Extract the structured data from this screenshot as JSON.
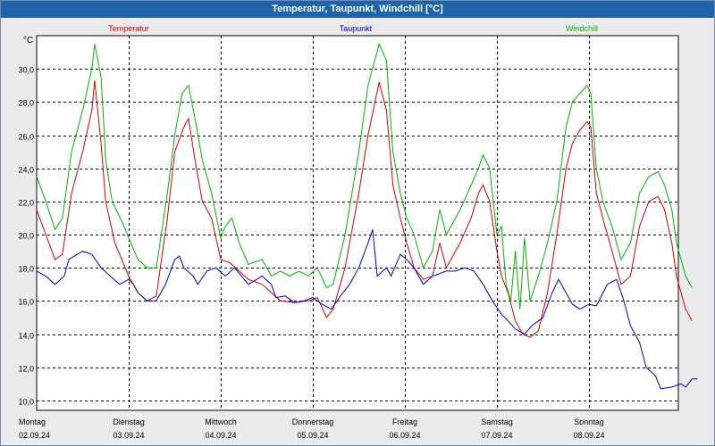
{
  "window": {
    "title": "Temperatur, Taupunkt, Windchill [°C]"
  },
  "chart_data": {
    "type": "line",
    "title": "Temperatur, Taupunkt, Windchill [°C]",
    "ylabel": "°C",
    "ylim": [
      9.4,
      32.0
    ],
    "yticks": [
      10.0,
      12.0,
      14.0,
      16.0,
      18.0,
      20.0,
      22.0,
      24.0,
      26.0,
      28.0,
      30.0
    ],
    "ytick_labels": [
      "10,0",
      "12,0",
      "14,0",
      "16,0",
      "18,0",
      "20,0",
      "22,0",
      "24,0",
      "26,0",
      "28,0",
      "30,0"
    ],
    "xlim": [
      0,
      7
    ],
    "day_labels": [
      {
        "weekday": "Montag",
        "date": "02.09.24"
      },
      {
        "weekday": "Dienstag",
        "date": "03.09.24"
      },
      {
        "weekday": "Mittwoch",
        "date": "04.09.24"
      },
      {
        "weekday": "Donnerstag",
        "date": "05.09.24"
      },
      {
        "weekday": "Freitag",
        "date": "06.09.24"
      },
      {
        "weekday": "Samstag",
        "date": "07.09.24"
      },
      {
        "weekday": "Sonntag",
        "date": "08.09.24"
      }
    ],
    "grid": true,
    "colors": {
      "temperature": "#d40000",
      "dewpoint": "#0000c8",
      "windchill": "#00b400",
      "grid": "#000000"
    },
    "series": [
      {
        "name": "Temperatur",
        "color": "#d40000",
        "points": [
          [
            0,
            21.5
          ],
          [
            0.1,
            20.0
          ],
          [
            0.2,
            18.5
          ],
          [
            0.28,
            18.8
          ],
          [
            0.38,
            22.5
          ],
          [
            0.5,
            25.0
          ],
          [
            0.6,
            27.5
          ],
          [
            0.63,
            29.3
          ],
          [
            0.7,
            25.5
          ],
          [
            0.75,
            22.0
          ],
          [
            0.85,
            19.5
          ],
          [
            1.0,
            17.5
          ],
          [
            1.1,
            16.5
          ],
          [
            1.2,
            16.0
          ],
          [
            1.3,
            16.3
          ],
          [
            1.42,
            21.0
          ],
          [
            1.5,
            25.0
          ],
          [
            1.6,
            26.5
          ],
          [
            1.65,
            27.0
          ],
          [
            1.72,
            24.5
          ],
          [
            1.8,
            22.0
          ],
          [
            1.9,
            21.0
          ],
          [
            2.0,
            18.5
          ],
          [
            2.1,
            18.3
          ],
          [
            2.2,
            17.8
          ],
          [
            2.3,
            17.3
          ],
          [
            2.45,
            17.0
          ],
          [
            2.55,
            16.5
          ],
          [
            2.65,
            16.0
          ],
          [
            2.8,
            15.9
          ],
          [
            2.95,
            16.0
          ],
          [
            3.05,
            16.2
          ],
          [
            3.15,
            15.0
          ],
          [
            3.22,
            15.5
          ],
          [
            3.35,
            18.0
          ],
          [
            3.5,
            22.5
          ],
          [
            3.6,
            26.0
          ],
          [
            3.72,
            29.2
          ],
          [
            3.8,
            27.5
          ],
          [
            3.87,
            23.0
          ],
          [
            3.95,
            21.0
          ],
          [
            4.02,
            19.5
          ],
          [
            4.1,
            18.0
          ],
          [
            4.2,
            17.3
          ],
          [
            4.3,
            17.5
          ],
          [
            4.38,
            19.5
          ],
          [
            4.45,
            18.0
          ],
          [
            4.6,
            19.5
          ],
          [
            4.72,
            21.0
          ],
          [
            4.8,
            22.5
          ],
          [
            4.85,
            23.0
          ],
          [
            4.92,
            22.0
          ],
          [
            5.0,
            19.0
          ],
          [
            5.05,
            17.5
          ],
          [
            5.12,
            16.5
          ],
          [
            5.2,
            14.8
          ],
          [
            5.28,
            14.0
          ],
          [
            5.36,
            13.8
          ],
          [
            5.45,
            14.2
          ],
          [
            5.55,
            16.5
          ],
          [
            5.65,
            20.0
          ],
          [
            5.75,
            24.0
          ],
          [
            5.82,
            25.5
          ],
          [
            5.9,
            26.3
          ],
          [
            5.98,
            26.8
          ],
          [
            6.02,
            26.5
          ],
          [
            6.08,
            22.5
          ],
          [
            6.15,
            21.0
          ],
          [
            6.25,
            19.0
          ],
          [
            6.35,
            17.0
          ],
          [
            6.45,
            17.5
          ],
          [
            6.55,
            20.5
          ],
          [
            6.65,
            22.0
          ],
          [
            6.75,
            22.3
          ],
          [
            6.82,
            21.5
          ],
          [
            6.9,
            19.5
          ],
          [
            6.95,
            17.5
          ],
          [
            7.0,
            16.5
          ],
          [
            7.05,
            15.5
          ],
          [
            7.12,
            14.8
          ]
        ]
      },
      {
        "name": "Taupunkt",
        "color": "#0000c8",
        "points": [
          [
            0,
            17.8
          ],
          [
            0.1,
            17.5
          ],
          [
            0.2,
            17.0
          ],
          [
            0.3,
            17.5
          ],
          [
            0.35,
            18.5
          ],
          [
            0.5,
            19.0
          ],
          [
            0.6,
            18.8
          ],
          [
            0.7,
            18.0
          ],
          [
            0.8,
            17.5
          ],
          [
            0.9,
            17.0
          ],
          [
            1.0,
            17.3
          ],
          [
            1.05,
            17.0
          ],
          [
            1.1,
            16.5
          ],
          [
            1.2,
            16.0
          ],
          [
            1.3,
            16.0
          ],
          [
            1.4,
            17.0
          ],
          [
            1.5,
            18.5
          ],
          [
            1.55,
            18.7
          ],
          [
            1.6,
            18.0
          ],
          [
            1.7,
            17.5
          ],
          [
            1.75,
            17.0
          ],
          [
            1.85,
            17.8
          ],
          [
            1.95,
            18.0
          ],
          [
            2.05,
            17.5
          ],
          [
            2.15,
            18.0
          ],
          [
            2.3,
            17.0
          ],
          [
            2.45,
            17.5
          ],
          [
            2.55,
            17.0
          ],
          [
            2.6,
            16.2
          ],
          [
            2.7,
            16.3
          ],
          [
            2.8,
            15.9
          ],
          [
            2.9,
            16.0
          ],
          [
            3.0,
            16.2
          ],
          [
            3.1,
            15.8
          ],
          [
            3.2,
            15.5
          ],
          [
            3.3,
            16.3
          ],
          [
            3.4,
            17.0
          ],
          [
            3.5,
            18.0
          ],
          [
            3.6,
            19.5
          ],
          [
            3.65,
            20.3
          ],
          [
            3.7,
            17.5
          ],
          [
            3.8,
            18.0
          ],
          [
            3.85,
            17.5
          ],
          [
            3.95,
            18.8
          ],
          [
            4.02,
            18.5
          ],
          [
            4.1,
            18.0
          ],
          [
            4.2,
            17.0
          ],
          [
            4.3,
            17.5
          ],
          [
            4.45,
            17.8
          ],
          [
            4.55,
            17.8
          ],
          [
            4.65,
            18.0
          ],
          [
            4.75,
            17.8
          ],
          [
            4.85,
            17.0
          ],
          [
            4.95,
            16.0
          ],
          [
            5.05,
            15.2
          ],
          [
            5.12,
            14.8
          ],
          [
            5.2,
            14.3
          ],
          [
            5.3,
            14.0
          ],
          [
            5.38,
            14.5
          ],
          [
            5.5,
            15.0
          ],
          [
            5.6,
            16.5
          ],
          [
            5.67,
            17.3
          ],
          [
            5.75,
            16.5
          ],
          [
            5.82,
            15.8
          ],
          [
            5.9,
            15.5
          ],
          [
            6.0,
            15.8
          ],
          [
            6.08,
            15.7
          ],
          [
            6.2,
            17.0
          ],
          [
            6.3,
            17.3
          ],
          [
            6.38,
            16.0
          ],
          [
            6.45,
            14.5
          ],
          [
            6.55,
            13.5
          ],
          [
            6.62,
            12.0
          ],
          [
            6.72,
            11.5
          ],
          [
            6.78,
            10.7
          ],
          [
            6.9,
            10.8
          ],
          [
            7.0,
            11.0
          ],
          [
            7.05,
            10.8
          ],
          [
            7.12,
            11.3
          ],
          [
            7.18,
            11.3
          ]
        ]
      },
      {
        "name": "Windchill",
        "color": "#00b400",
        "points": [
          [
            0,
            23.5
          ],
          [
            0.1,
            22.0
          ],
          [
            0.2,
            20.3
          ],
          [
            0.28,
            21.0
          ],
          [
            0.38,
            25.0
          ],
          [
            0.5,
            27.5
          ],
          [
            0.6,
            30.0
          ],
          [
            0.63,
            31.5
          ],
          [
            0.7,
            29.5
          ],
          [
            0.75,
            24.5
          ],
          [
            0.82,
            22.0
          ],
          [
            0.95,
            20.5
          ],
          [
            1.0,
            19.8
          ],
          [
            1.1,
            18.5
          ],
          [
            1.2,
            18.0
          ],
          [
            1.3,
            18.0
          ],
          [
            1.42,
            22.5
          ],
          [
            1.5,
            26.0
          ],
          [
            1.58,
            28.5
          ],
          [
            1.65,
            29.0
          ],
          [
            1.72,
            27.0
          ],
          [
            1.8,
            24.5
          ],
          [
            1.9,
            22.5
          ],
          [
            2.0,
            19.8
          ],
          [
            2.05,
            20.5
          ],
          [
            2.12,
            21.0
          ],
          [
            2.2,
            19.5
          ],
          [
            2.3,
            18.2
          ],
          [
            2.45,
            18.5
          ],
          [
            2.55,
            17.5
          ],
          [
            2.65,
            17.8
          ],
          [
            2.75,
            17.5
          ],
          [
            2.85,
            17.8
          ],
          [
            2.95,
            17.5
          ],
          [
            3.05,
            18.0
          ],
          [
            3.15,
            16.8
          ],
          [
            3.22,
            17.0
          ],
          [
            3.35,
            20.0
          ],
          [
            3.5,
            25.0
          ],
          [
            3.6,
            29.0
          ],
          [
            3.72,
            31.5
          ],
          [
            3.8,
            30.5
          ],
          [
            3.87,
            25.0
          ],
          [
            3.95,
            22.5
          ],
          [
            4.02,
            21.0
          ],
          [
            4.1,
            20.0
          ],
          [
            4.2,
            18.0
          ],
          [
            4.3,
            19.0
          ],
          [
            4.38,
            21.5
          ],
          [
            4.45,
            20.0
          ],
          [
            4.6,
            21.5
          ],
          [
            4.72,
            23.0
          ],
          [
            4.8,
            24.0
          ],
          [
            4.85,
            24.8
          ],
          [
            4.92,
            24.0
          ],
          [
            5.0,
            20.0
          ],
          [
            5.05,
            20.5
          ],
          [
            5.1,
            17.0
          ],
          [
            5.15,
            16.0
          ],
          [
            5.2,
            19.0
          ],
          [
            5.25,
            15.5
          ],
          [
            5.3,
            19.8
          ],
          [
            5.36,
            16.0
          ],
          [
            5.45,
            17.5
          ],
          [
            5.55,
            19.5
          ],
          [
            5.65,
            22.0
          ],
          [
            5.75,
            26.5
          ],
          [
            5.82,
            28.0
          ],
          [
            5.9,
            28.5
          ],
          [
            5.98,
            29.0
          ],
          [
            6.02,
            28.5
          ],
          [
            6.08,
            24.0
          ],
          [
            6.15,
            22.0
          ],
          [
            6.25,
            20.5
          ],
          [
            6.35,
            18.5
          ],
          [
            6.45,
            19.5
          ],
          [
            6.55,
            22.5
          ],
          [
            6.65,
            23.5
          ],
          [
            6.75,
            23.8
          ],
          [
            6.82,
            23.0
          ],
          [
            6.9,
            21.5
          ],
          [
            6.95,
            19.5
          ],
          [
            7.0,
            18.5
          ],
          [
            7.05,
            17.5
          ],
          [
            7.12,
            16.8
          ]
        ]
      }
    ]
  }
}
